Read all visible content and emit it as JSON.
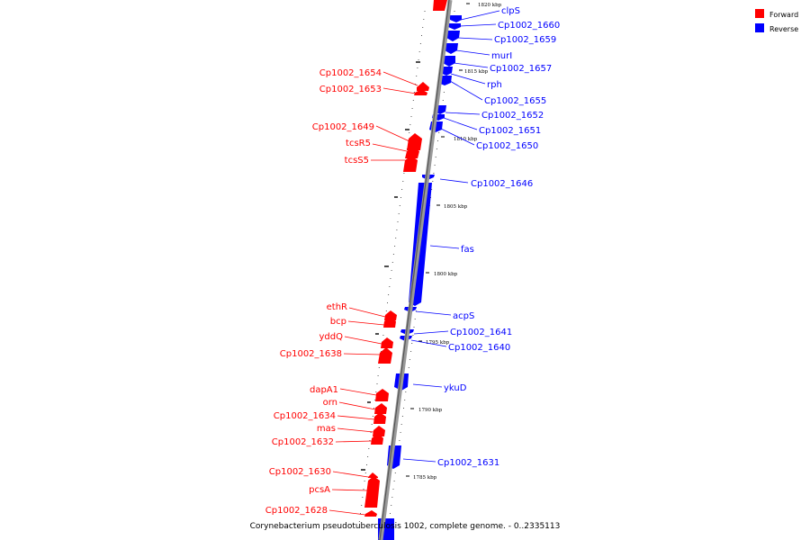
{
  "title": "Corynebacterium pseudotuberculosis 1002, complete genome. - 0..2335113",
  "legend": [
    {
      "label": "Forward",
      "color": "#ff0000"
    },
    {
      "label": "Reverse",
      "color": "#0000ff"
    }
  ],
  "ticks": [
    "1820 kbp",
    "1815 kbp",
    "1810 kbp",
    "1805 kbp",
    "1800 kbp",
    "1795 kbp",
    "1790 kbp",
    "1785 kbp"
  ],
  "forward_genes": [
    "Cp1002_1654",
    "Cp1002_1653",
    "Cp1002_1649",
    "tcsR5",
    "tcsS5",
    "ethR",
    "bcp",
    "yddQ",
    "Cp1002_1638",
    "dapA1",
    "orn",
    "Cp1002_1634",
    "mas",
    "Cp1002_1632",
    "Cp1002_1630",
    "pcsA",
    "Cp1002_1628"
  ],
  "reverse_genes": [
    "clpS",
    "Cp1002_1660",
    "Cp1002_1659",
    "murI",
    "Cp1002_1657",
    "rph",
    "Cp1002_1655",
    "Cp1002_1652",
    "Cp1002_1651",
    "Cp1002_1650",
    "Cp1002_1646",
    "fas",
    "acpS",
    "Cp1002_1641",
    "Cp1002_1640",
    "ykuD",
    "Cp1002_1631"
  ]
}
